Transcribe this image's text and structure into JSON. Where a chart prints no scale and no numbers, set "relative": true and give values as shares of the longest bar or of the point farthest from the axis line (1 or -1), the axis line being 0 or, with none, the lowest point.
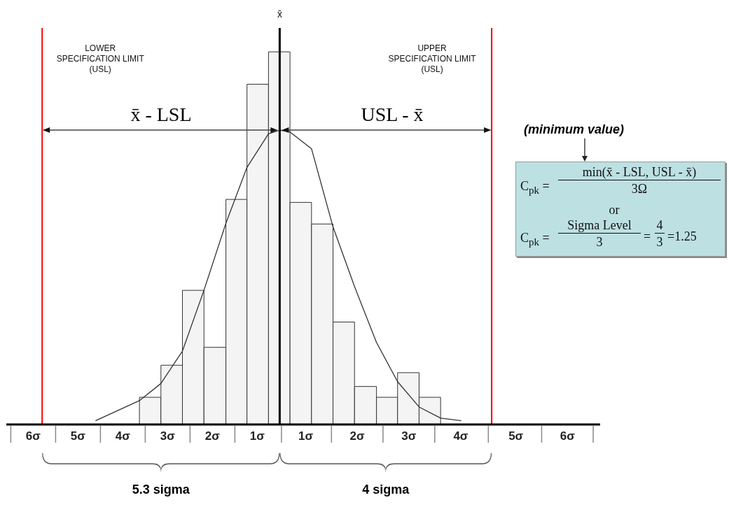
{
  "chart_data": {
    "type": "histogram",
    "relative": true,
    "bins": [
      -3.13,
      -2.65,
      -2.17,
      -1.69,
      -1.2,
      -0.73,
      -0.25,
      0.23,
      0.71,
      1.19,
      1.67,
      2.16,
      2.63,
      3.11,
      3.59
    ],
    "xlim": [
      -6.1,
      7.15
    ],
    "xticks": [
      {
        "value": -5.5,
        "label": "6σ"
      },
      {
        "value": -4.5,
        "label": "5σ"
      },
      {
        "value": -3.5,
        "label": "4σ"
      },
      {
        "value": -2.5,
        "label": "3σ"
      },
      {
        "value": -1.5,
        "label": "2σ"
      },
      {
        "value": -0.5,
        "label": "1σ"
      },
      {
        "value": 0.58,
        "label": "1σ"
      },
      {
        "value": 1.73,
        "label": "2σ"
      },
      {
        "value": 2.88,
        "label": "3σ"
      },
      {
        "value": 4.04,
        "label": "4σ"
      },
      {
        "value": 5.27,
        "label": "5σ"
      },
      {
        "value": 6.42,
        "label": "6σ"
      }
    ],
    "series": [
      {
        "color": "#f4f4f4",
        "values": [
          0.073,
          0.159,
          0.36,
          0.207,
          0.604,
          0.913,
          1,
          0.596,
          0.538,
          0.275,
          0.102,
          0.073,
          0.139,
          0.073
        ]
      },
      {
        "type": "line",
        "color": "#333333",
        "marker": "none",
        "x": [
          -4.11,
          -3.13,
          -2.65,
          -2.17,
          -1.69,
          -1.2,
          -0.73,
          -0.25,
          0,
          0.23,
          0.71,
          1.19,
          1.67,
          2.16,
          2.63,
          3.11,
          3.59,
          4.05
        ],
        "values": [
          0.01,
          0.064,
          0.11,
          0.197,
          0.36,
          0.54,
          0.69,
          0.78,
          0.79,
          0.785,
          0.74,
          0.53,
          0.37,
          0.22,
          0.115,
          0.047,
          0.017,
          0.01
        ]
      }
    ],
    "ref_lines": [
      {
        "axis": "x",
        "value": -5.3,
        "label": "LOWER SPECIFICATION LIMIT (USL)",
        "color": "#ff0000"
      },
      {
        "axis": "x",
        "value": 0,
        "label": "x̄",
        "color": "#000000"
      },
      {
        "axis": "x",
        "value": 4.73,
        "label": "UPPER SPECIFICATION LIMIT (USL)",
        "color": "#ff0000"
      }
    ],
    "annotations": [
      "x̄ - LSL",
      "USL - x̄",
      "(minimum value)",
      "C$_{pk}$ =",
      "min(x̄ - LSL, USL - x̄)",
      "3Ω",
      "or",
      "C$_{pk}$ =",
      "Sigma Level",
      "3",
      "=",
      "4",
      "3",
      "=1.25",
      "5.3 sigma",
      "4 sigma"
    ]
  }
}
